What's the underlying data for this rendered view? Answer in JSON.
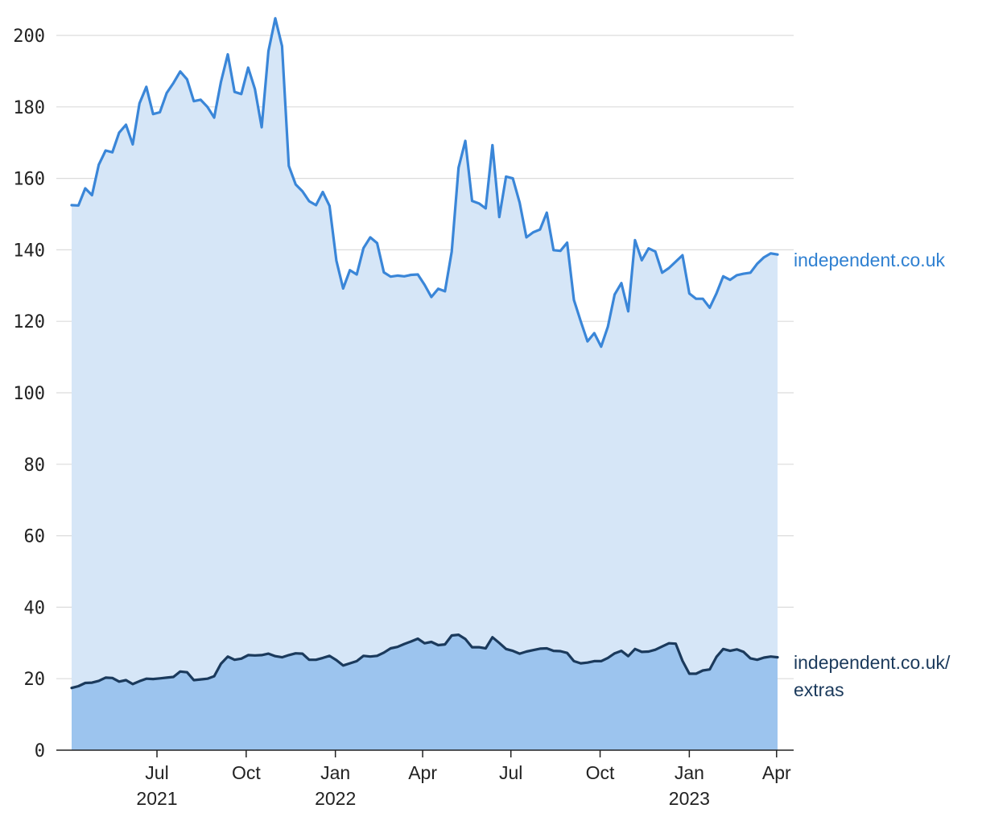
{
  "chart_data": {
    "type": "area",
    "title": "",
    "xlabel": "",
    "ylabel": "",
    "ylim": [
      0,
      205
    ],
    "xlim": [
      "2021-04-04",
      "2023-04-30"
    ],
    "y_ticks": [
      0,
      20,
      40,
      60,
      80,
      100,
      120,
      140,
      160,
      180,
      200
    ],
    "x_ticks": [
      {
        "date": "2021-07-01",
        "label": "Jul",
        "year": "2021"
      },
      {
        "date": "2021-10-01",
        "label": "Oct",
        "year": ""
      },
      {
        "date": "2022-01-01",
        "label": "Jan",
        "year": "2022"
      },
      {
        "date": "2022-04-01",
        "label": "Apr",
        "year": ""
      },
      {
        "date": "2022-07-01",
        "label": "Jul",
        "year": ""
      },
      {
        "date": "2022-10-01",
        "label": "Oct",
        "year": ""
      },
      {
        "date": "2023-01-01",
        "label": "Jan",
        "year": "2023"
      },
      {
        "date": "2023-04-01",
        "label": "Apr",
        "year": ""
      }
    ],
    "grid": true,
    "legend": "direct labels at right end of lines",
    "series": [
      {
        "name": "independent.co.uk",
        "line_color": "#3a86d8",
        "fill_color": "#d6e6f7",
        "points": [
          [
            "2021-04-04",
            152.5
          ],
          [
            "2021-04-11",
            152.4
          ],
          [
            "2021-04-18",
            157.2
          ],
          [
            "2021-04-25",
            155.3
          ],
          [
            "2021-05-02",
            163.8
          ],
          [
            "2021-05-09",
            167.8
          ],
          [
            "2021-05-16",
            167.3
          ],
          [
            "2021-05-23",
            172.8
          ],
          [
            "2021-05-30",
            175.0
          ],
          [
            "2021-06-06",
            169.5
          ],
          [
            "2021-06-13",
            181.0
          ],
          [
            "2021-06-20",
            185.6
          ],
          [
            "2021-06-27",
            178.0
          ],
          [
            "2021-07-04",
            178.5
          ],
          [
            "2021-07-11",
            183.9
          ],
          [
            "2021-07-18",
            186.7
          ],
          [
            "2021-07-25",
            189.9
          ],
          [
            "2021-08-01",
            187.7
          ],
          [
            "2021-08-08",
            181.6
          ],
          [
            "2021-08-15",
            182.0
          ],
          [
            "2021-08-22",
            180.0
          ],
          [
            "2021-08-29",
            177.0
          ],
          [
            "2021-09-05",
            187.0
          ],
          [
            "2021-09-12",
            194.7
          ],
          [
            "2021-09-19",
            184.2
          ],
          [
            "2021-09-26",
            183.6
          ],
          [
            "2021-10-03",
            191.0
          ],
          [
            "2021-10-10",
            185.0
          ],
          [
            "2021-10-17",
            174.3
          ],
          [
            "2021-10-24",
            195.6
          ],
          [
            "2021-10-31",
            204.8
          ],
          [
            "2021-11-07",
            197.0
          ],
          [
            "2021-11-14",
            163.5
          ],
          [
            "2021-11-21",
            158.3
          ],
          [
            "2021-11-28",
            156.4
          ],
          [
            "2021-12-05",
            153.6
          ],
          [
            "2021-12-12",
            152.5
          ],
          [
            "2021-12-19",
            156.2
          ],
          [
            "2021-12-26",
            152.3
          ],
          [
            "2022-01-02",
            137.0
          ],
          [
            "2022-01-09",
            129.2
          ],
          [
            "2022-01-16",
            134.3
          ],
          [
            "2022-01-23",
            133.1
          ],
          [
            "2022-01-30",
            140.5
          ],
          [
            "2022-02-06",
            143.5
          ],
          [
            "2022-02-13",
            141.9
          ],
          [
            "2022-02-20",
            133.7
          ],
          [
            "2022-02-27",
            132.5
          ],
          [
            "2022-03-06",
            132.8
          ],
          [
            "2022-03-13",
            132.6
          ],
          [
            "2022-03-20",
            133.0
          ],
          [
            "2022-03-27",
            133.1
          ],
          [
            "2022-04-03",
            130.2
          ],
          [
            "2022-04-10",
            126.8
          ],
          [
            "2022-04-17",
            129.1
          ],
          [
            "2022-04-24",
            128.4
          ],
          [
            "2022-05-01",
            139.5
          ],
          [
            "2022-05-08",
            163.0
          ],
          [
            "2022-05-15",
            170.5
          ],
          [
            "2022-05-22",
            153.7
          ],
          [
            "2022-05-29",
            153.0
          ],
          [
            "2022-06-05",
            151.6
          ],
          [
            "2022-06-12",
            169.3
          ],
          [
            "2022-06-19",
            149.2
          ],
          [
            "2022-06-26",
            160.5
          ],
          [
            "2022-07-03",
            160.0
          ],
          [
            "2022-07-10",
            153.2
          ],
          [
            "2022-07-17",
            143.5
          ],
          [
            "2022-07-24",
            144.9
          ],
          [
            "2022-07-31",
            145.7
          ],
          [
            "2022-08-07",
            150.4
          ],
          [
            "2022-08-14",
            139.9
          ],
          [
            "2022-08-21",
            139.7
          ],
          [
            "2022-08-28",
            142.0
          ],
          [
            "2022-09-04",
            126.0
          ],
          [
            "2022-09-11",
            120.0
          ],
          [
            "2022-09-18",
            114.4
          ],
          [
            "2022-09-25",
            116.7
          ],
          [
            "2022-10-02",
            112.9
          ],
          [
            "2022-10-09",
            118.5
          ],
          [
            "2022-10-16",
            127.5
          ],
          [
            "2022-10-23",
            130.7
          ],
          [
            "2022-10-30",
            122.8
          ],
          [
            "2022-11-06",
            142.7
          ],
          [
            "2022-11-13",
            137.1
          ],
          [
            "2022-11-20",
            140.4
          ],
          [
            "2022-11-27",
            139.5
          ],
          [
            "2022-12-04",
            133.6
          ],
          [
            "2022-12-11",
            134.9
          ],
          [
            "2022-12-18",
            136.7
          ],
          [
            "2022-12-25",
            138.5
          ],
          [
            "2023-01-01",
            127.8
          ],
          [
            "2023-01-08",
            126.3
          ],
          [
            "2023-01-15",
            126.3
          ],
          [
            "2023-01-22",
            123.8
          ],
          [
            "2023-01-29",
            127.8
          ],
          [
            "2023-02-05",
            132.6
          ],
          [
            "2023-02-12",
            131.6
          ],
          [
            "2023-02-19",
            132.9
          ],
          [
            "2023-02-26",
            133.3
          ],
          [
            "2023-03-05",
            133.6
          ],
          [
            "2023-03-12",
            136.1
          ],
          [
            "2023-03-19",
            137.9
          ],
          [
            "2023-03-26",
            139.0
          ],
          [
            "2023-04-02",
            138.7
          ]
        ]
      },
      {
        "name": "independent.co.uk/ extras",
        "line_color": "#1b3a5c",
        "fill_color": "#9cc4ee",
        "points": [
          [
            "2021-04-04",
            17.4
          ],
          [
            "2021-04-11",
            17.9
          ],
          [
            "2021-04-18",
            18.8
          ],
          [
            "2021-04-25",
            18.9
          ],
          [
            "2021-05-02",
            19.4
          ],
          [
            "2021-05-09",
            20.3
          ],
          [
            "2021-05-16",
            20.2
          ],
          [
            "2021-05-23",
            19.2
          ],
          [
            "2021-05-30",
            19.6
          ],
          [
            "2021-06-06",
            18.5
          ],
          [
            "2021-06-13",
            19.3
          ],
          [
            "2021-06-20",
            20.0
          ],
          [
            "2021-06-27",
            19.9
          ],
          [
            "2021-07-04",
            20.1
          ],
          [
            "2021-07-11",
            20.3
          ],
          [
            "2021-07-18",
            20.5
          ],
          [
            "2021-07-25",
            22.0
          ],
          [
            "2021-08-01",
            21.8
          ],
          [
            "2021-08-08",
            19.6
          ],
          [
            "2021-08-15",
            19.8
          ],
          [
            "2021-08-22",
            20.0
          ],
          [
            "2021-08-29",
            20.7
          ],
          [
            "2021-09-05",
            24.2
          ],
          [
            "2021-09-12",
            26.2
          ],
          [
            "2021-09-19",
            25.3
          ],
          [
            "2021-09-26",
            25.6
          ],
          [
            "2021-10-03",
            26.6
          ],
          [
            "2021-10-10",
            26.5
          ],
          [
            "2021-10-17",
            26.6
          ],
          [
            "2021-10-24",
            27.0
          ],
          [
            "2021-10-31",
            26.3
          ],
          [
            "2021-11-07",
            26.0
          ],
          [
            "2021-11-14",
            26.6
          ],
          [
            "2021-11-21",
            27.1
          ],
          [
            "2021-11-28",
            27.0
          ],
          [
            "2021-12-05",
            25.3
          ],
          [
            "2021-12-12",
            25.3
          ],
          [
            "2021-12-19",
            25.8
          ],
          [
            "2021-12-26",
            26.4
          ],
          [
            "2022-01-02",
            25.2
          ],
          [
            "2022-01-09",
            23.7
          ],
          [
            "2022-01-16",
            24.3
          ],
          [
            "2022-01-23",
            24.9
          ],
          [
            "2022-01-30",
            26.4
          ],
          [
            "2022-02-06",
            26.2
          ],
          [
            "2022-02-13",
            26.4
          ],
          [
            "2022-02-20",
            27.3
          ],
          [
            "2022-02-27",
            28.5
          ],
          [
            "2022-03-06",
            28.9
          ],
          [
            "2022-03-13",
            29.7
          ],
          [
            "2022-03-20",
            30.4
          ],
          [
            "2022-03-27",
            31.2
          ],
          [
            "2022-04-03",
            29.9
          ],
          [
            "2022-04-10",
            30.3
          ],
          [
            "2022-04-17",
            29.4
          ],
          [
            "2022-04-24",
            29.6
          ],
          [
            "2022-05-01",
            32.1
          ],
          [
            "2022-05-08",
            32.3
          ],
          [
            "2022-05-15",
            31.1
          ],
          [
            "2022-05-22",
            28.8
          ],
          [
            "2022-05-29",
            28.8
          ],
          [
            "2022-06-05",
            28.5
          ],
          [
            "2022-06-12",
            31.6
          ],
          [
            "2022-06-19",
            30.0
          ],
          [
            "2022-06-26",
            28.3
          ],
          [
            "2022-07-03",
            27.8
          ],
          [
            "2022-07-10",
            27.0
          ],
          [
            "2022-07-17",
            27.6
          ],
          [
            "2022-07-24",
            28.0
          ],
          [
            "2022-07-31",
            28.4
          ],
          [
            "2022-08-07",
            28.5
          ],
          [
            "2022-08-14",
            27.8
          ],
          [
            "2022-08-21",
            27.7
          ],
          [
            "2022-08-28",
            27.2
          ],
          [
            "2022-09-04",
            24.9
          ],
          [
            "2022-09-11",
            24.3
          ],
          [
            "2022-09-18",
            24.5
          ],
          [
            "2022-09-25",
            24.9
          ],
          [
            "2022-10-02",
            24.9
          ],
          [
            "2022-10-09",
            25.8
          ],
          [
            "2022-10-16",
            27.1
          ],
          [
            "2022-10-23",
            27.8
          ],
          [
            "2022-10-30",
            26.3
          ],
          [
            "2022-11-06",
            28.3
          ],
          [
            "2022-11-13",
            27.5
          ],
          [
            "2022-11-20",
            27.6
          ],
          [
            "2022-11-27",
            28.1
          ],
          [
            "2022-12-04",
            29.0
          ],
          [
            "2022-12-11",
            29.9
          ],
          [
            "2022-12-18",
            29.8
          ],
          [
            "2022-12-25",
            25.0
          ],
          [
            "2023-01-01",
            21.4
          ],
          [
            "2023-01-08",
            21.4
          ],
          [
            "2023-01-15",
            22.3
          ],
          [
            "2023-01-22",
            22.6
          ],
          [
            "2023-01-29",
            26.1
          ],
          [
            "2023-02-05",
            28.3
          ],
          [
            "2023-02-12",
            27.8
          ],
          [
            "2023-02-19",
            28.2
          ],
          [
            "2023-02-26",
            27.5
          ],
          [
            "2023-03-05",
            25.7
          ],
          [
            "2023-03-12",
            25.3
          ],
          [
            "2023-03-19",
            25.9
          ],
          [
            "2023-03-26",
            26.2
          ],
          [
            "2023-04-02",
            26.0
          ]
        ]
      }
    ],
    "labels": [
      {
        "series": 0,
        "lines": [
          "independent.co.uk"
        ],
        "color": "#2f80d1"
      },
      {
        "series": 1,
        "lines": [
          "independent.co.uk/",
          "extras"
        ],
        "color": "#1b3a5c"
      }
    ]
  }
}
